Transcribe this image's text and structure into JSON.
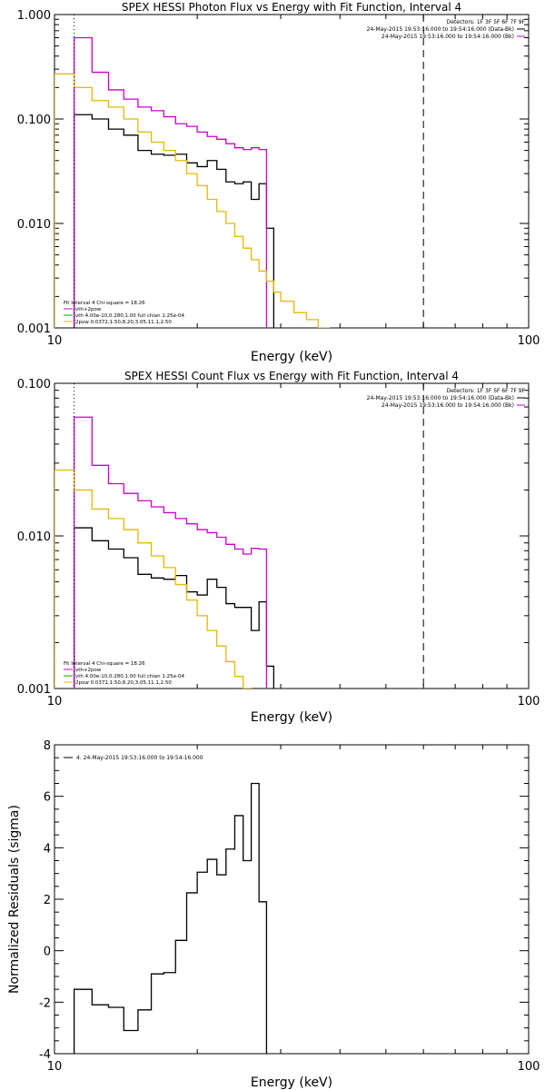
{
  "chart_data": [
    {
      "type": "line",
      "title": "SPEX HESSI Photon Flux vs Energy with Fit Function, Interval 4",
      "xlabel": "Energy (keV)",
      "ylabel": "",
      "x_scale": "log",
      "y_scale": "log",
      "xlim": [
        10,
        100
      ],
      "ylim": [
        0.001,
        1.0
      ],
      "x_ticks": [
        "10",
        "100"
      ],
      "y_ticks": [
        "0.001",
        "0.010",
        "0.100",
        "1.000"
      ],
      "energy_edges": [
        10.0,
        11.0,
        12.0,
        13.0,
        14.0,
        15.0,
        16.0,
        17.0,
        18.0,
        19.0,
        20.0,
        21.0,
        22.0,
        23.0,
        24.0,
        25.0,
        26.0,
        27.0,
        28.0,
        29.0,
        30.0,
        32.0,
        34.0,
        36.0,
        38.0,
        40.0,
        43.0,
        46.0,
        50.0,
        55.0,
        60.0,
        65.0,
        70.0
      ],
      "series": [
        {
          "name": "24-May-2015 19:53:16.000 to 19:54:16.000 (Data-Bk)",
          "color": "#000000",
          "start_edge": 1,
          "values": [
            0.11,
            0.1,
            0.08,
            0.07,
            0.05,
            0.046,
            0.045,
            0.046,
            0.038,
            0.035,
            0.04,
            0.033,
            0.025,
            0.024,
            0.025,
            0.017,
            0.024,
            0.009
          ]
        },
        {
          "name": "24-May-2015 19:53:16.000 to 19:54:16.000 (Bk)",
          "color": "#cc00cc",
          "start_edge": 1,
          "values": [
            0.6,
            0.28,
            0.19,
            0.155,
            0.13,
            0.12,
            0.105,
            0.09,
            0.085,
            0.075,
            0.068,
            0.064,
            0.058,
            0.053,
            0.051,
            0.053,
            0.051
          ]
        },
        {
          "name": "2pow 0.0372,1.50,8.20,3.05,11.1,2.50",
          "color": "#e6b800",
          "start_edge": 0,
          "values": [
            0.27,
            0.2,
            0.15,
            0.13,
            0.1,
            0.075,
            0.06,
            0.05,
            0.04,
            0.03,
            0.023,
            0.017,
            0.013,
            0.01,
            0.0075,
            0.0058,
            0.0045,
            0.0035,
            0.0028,
            0.0022,
            0.0018,
            0.0014,
            0.0012,
            0.001
          ]
        }
      ],
      "vlines": [
        {
          "x": 11.0,
          "style": "dotted"
        },
        {
          "x": 60.0,
          "style": "dashed"
        }
      ],
      "legend": {
        "position": "top-right",
        "lines": [
          "Detectors: 1F 3F 5F 6F 7F 9F",
          "24-May-2015 19:53:16.000 to 19:54:16.000 (Data-Bk)",
          "24-May-2015 19:53:16.000 to 19:54:16.000 (Bk)"
        ]
      },
      "fit_info": {
        "position": "bottom-left",
        "lines": [
          "Fit Interval  4    Chi-square = 18.26",
          "vth+2pow",
          "vth 4.00e-10,0.280,1.00  full chian 1.25e-04",
          "2pow 0.0372,1.50,8.20,3.05,11.1,2.50"
        ]
      }
    },
    {
      "type": "line",
      "title": "SPEX HESSI Count Flux vs Energy with Fit Function, Interval 4",
      "xlabel": "Energy (keV)",
      "ylabel": "",
      "x_scale": "log",
      "y_scale": "log",
      "xlim": [
        10,
        100
      ],
      "ylim": [
        0.001,
        0.1
      ],
      "x_ticks": [
        "10",
        "100"
      ],
      "y_ticks": [
        "0.001",
        "0.010",
        "0.100"
      ],
      "energy_edges": [
        10.0,
        11.0,
        12.0,
        13.0,
        14.0,
        15.0,
        16.0,
        17.0,
        18.0,
        19.0,
        20.0,
        21.0,
        22.0,
        23.0,
        24.0,
        25.0,
        26.0,
        27.0,
        28.0,
        29.0,
        30.0,
        32.0,
        34.0,
        36.0,
        38.0,
        40.0,
        43.0,
        46.0,
        50.0,
        55.0,
        60.0,
        65.0,
        70.0
      ],
      "series": [
        {
          "name": "24-May-2015 19:53:16.000 to 19:54:16.000 (Data-Bk)",
          "color": "#000000",
          "start_edge": 1,
          "values": [
            0.0113,
            0.0093,
            0.0082,
            0.0072,
            0.0056,
            0.0053,
            0.0052,
            0.0055,
            0.0043,
            0.0041,
            0.0052,
            0.0046,
            0.0036,
            0.0034,
            0.0034,
            0.0024,
            0.0037,
            0.0014
          ]
        },
        {
          "name": "24-May-2015 19:53:16.000 to 19:54:16.000 (Bk)",
          "color": "#cc00cc",
          "start_edge": 1,
          "values": [
            0.06,
            0.029,
            0.022,
            0.019,
            0.017,
            0.0155,
            0.0142,
            0.013,
            0.012,
            0.011,
            0.0105,
            0.0098,
            0.0088,
            0.0082,
            0.0076,
            0.0083,
            0.0082
          ]
        },
        {
          "name": "2pow 0.0372,1.50,8.20,3.05,11.1,2.50",
          "color": "#e6b800",
          "start_edge": 0,
          "values": [
            0.027,
            0.02,
            0.015,
            0.013,
            0.011,
            0.009,
            0.0074,
            0.0062,
            0.0048,
            0.0038,
            0.003,
            0.0024,
            0.0019,
            0.0015,
            0.0012,
            0.001
          ]
        }
      ],
      "vlines": [
        {
          "x": 11.0,
          "style": "dotted"
        },
        {
          "x": 60.0,
          "style": "dashed"
        }
      ],
      "legend": {
        "position": "top-right",
        "lines": [
          "Detectors: 1F 3F 5F 6F 7F 9F",
          "24-May-2015 19:53:16.000 to 19:54:16.000 (Data-Bk)",
          "24-May-2015 19:53:16.000 to 19:54:16.000 (Bk)"
        ]
      },
      "fit_info": {
        "position": "bottom-left",
        "lines": [
          "Fit Interval  4    Chi-square = 18.26",
          "vth+2pow",
          "vth 4.00e-10,0.280,1.00  full chian 1.25e-04",
          "2pow 0.0372,1.50,8.20,3.05,11.1,2.50"
        ]
      }
    },
    {
      "type": "line",
      "title": "",
      "xlabel": "Energy (keV)",
      "ylabel": "Normalized Residuals (sigma)",
      "x_scale": "log",
      "y_scale": "linear",
      "xlim": [
        10,
        100
      ],
      "ylim": [
        -4,
        8
      ],
      "x_ticks": [
        "10",
        "100"
      ],
      "y_ticks": [
        "-4",
        "-2",
        "0",
        "2",
        "4",
        "6",
        "8"
      ],
      "energy_edges": [
        10.0,
        11.0,
        12.0,
        13.0,
        14.0,
        15.0,
        16.0,
        17.0,
        18.0,
        19.0,
        20.0,
        21.0,
        22.0,
        23.0,
        24.0,
        25.0,
        26.0,
        27.0,
        28.0,
        29.0,
        30.0,
        32.0,
        34.0,
        36.0,
        38.0,
        40.0,
        43.0,
        46.0,
        50.0,
        55.0,
        60.0,
        65.0,
        70.0
      ],
      "series": [
        {
          "name": "4. 24-May-2015 19:53:16.000 to 19:54:16.000",
          "color": "#000000",
          "start_edge": 1,
          "values": [
            -1.5,
            -2.1,
            -2.2,
            -3.1,
            -2.3,
            -0.9,
            -0.85,
            0.4,
            2.25,
            3.05,
            3.55,
            2.95,
            3.95,
            5.25,
            3.5,
            6.5,
            1.9
          ]
        }
      ],
      "vlines": [],
      "legend": {
        "position": "top-left",
        "lines": [
          "4. 24-May-2015 19:53:16.000 to 19:54:16.000"
        ]
      },
      "fit_info": {
        "position": "none",
        "lines": []
      }
    }
  ]
}
